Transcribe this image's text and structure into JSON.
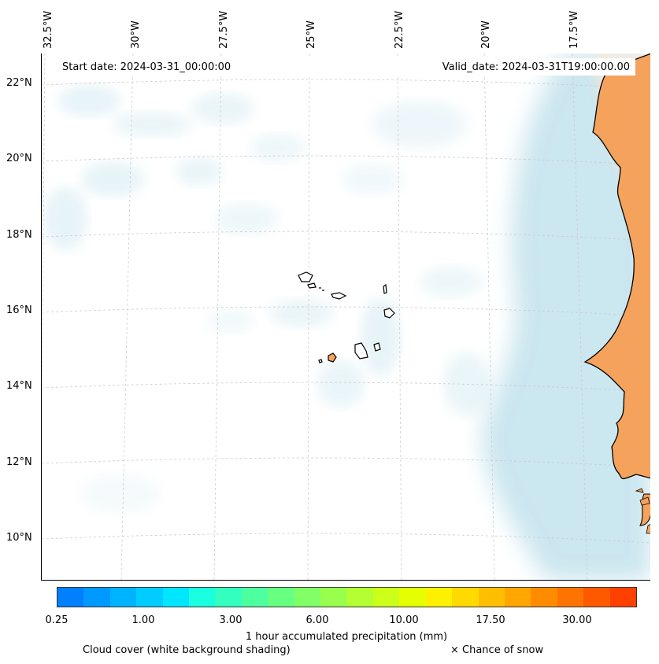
{
  "map": {
    "start_date": "Start date: 2024-03-31_00:00:00",
    "valid_date": "Valid_date: 2024-03-31T19:00:00.00",
    "lon_labels": [
      "32.5°W",
      "30°W",
      "27.5°W",
      "25°W",
      "22.5°W",
      "20°W",
      "17.5°W"
    ],
    "lat_labels": [
      "22°N",
      "20°N",
      "18°N",
      "16°N",
      "14°N",
      "12°N",
      "10°N"
    ]
  },
  "colorbar": {
    "title": "1 hour accumulated precipitation (mm)",
    "ticks": [
      "0.25",
      "1.00",
      "3.00",
      "6.00",
      "10.00",
      "17.50",
      "30.00"
    ],
    "colors": [
      "#0080ff",
      "#0099ff",
      "#00b3ff",
      "#00ccff",
      "#00e6ff",
      "#1affe0",
      "#33ffbf",
      "#4dff9f",
      "#66ff80",
      "#80ff66",
      "#99ff4d",
      "#b3ff33",
      "#ccff1a",
      "#e6ff00",
      "#fff000",
      "#ffd900",
      "#ffbf00",
      "#ffa600",
      "#ff8c00",
      "#ff7300",
      "#ff5900",
      "#ff4000"
    ]
  },
  "legend": {
    "cloud": "Cloud cover (white background shading)",
    "snow": "× Chance of snow"
  },
  "colors": {
    "land": "#f5a25d",
    "cloud": "#add8e6",
    "grid": "#cccccc"
  }
}
